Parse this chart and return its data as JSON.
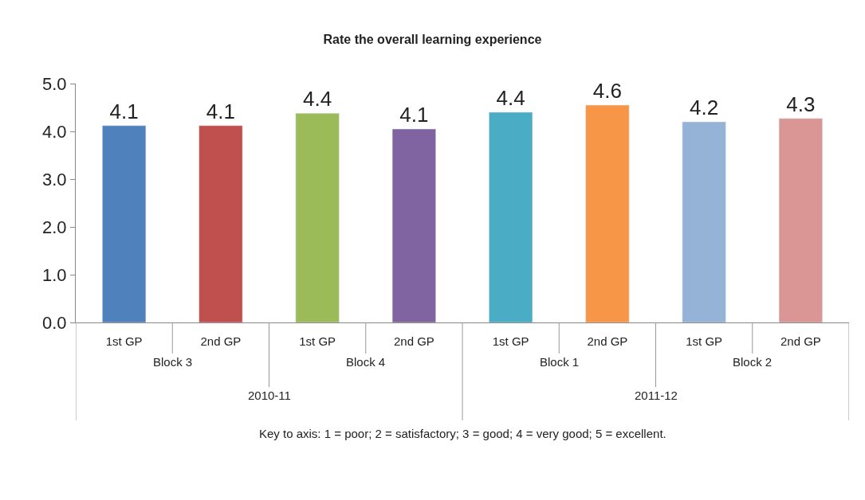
{
  "chart_data": {
    "type": "bar",
    "title": "Rate the overall learning experience",
    "categories": [
      "1st GP",
      "2nd GP",
      "1st GP",
      "2nd GP",
      "1st GP",
      "2nd GP",
      "1st GP",
      "2nd GP"
    ],
    "values": [
      4.12,
      4.12,
      4.38,
      4.05,
      4.4,
      4.55,
      4.2,
      4.27
    ],
    "value_labels": [
      "4.1",
      "4.1",
      "4.4",
      "4.1",
      "4.4",
      "4.6",
      "4.2",
      "4.3"
    ],
    "colors": [
      "#4f81bd",
      "#c0504d",
      "#9bbb59",
      "#8064a2",
      "#4bacc6",
      "#f79646",
      "#95b3d7",
      "#d99694"
    ],
    "ylim": [
      0,
      5
    ],
    "yticks": [
      {
        "value": 0,
        "label": "0.0"
      },
      {
        "value": 1,
        "label": "1.0"
      },
      {
        "value": 2,
        "label": "2.0"
      },
      {
        "value": 3,
        "label": "3.0"
      },
      {
        "value": 4,
        "label": "4.0"
      },
      {
        "value": 5,
        "label": "5.0"
      }
    ],
    "annotations": [
      "Block 3",
      "Block 4",
      "Block 1",
      "Block 2",
      "2010-11",
      "2011-12",
      "Key to axis: 1 = poor; 2 = satisfactory; 3 = good; 4 = very good; 5 = excellent."
    ],
    "grid": false
  }
}
